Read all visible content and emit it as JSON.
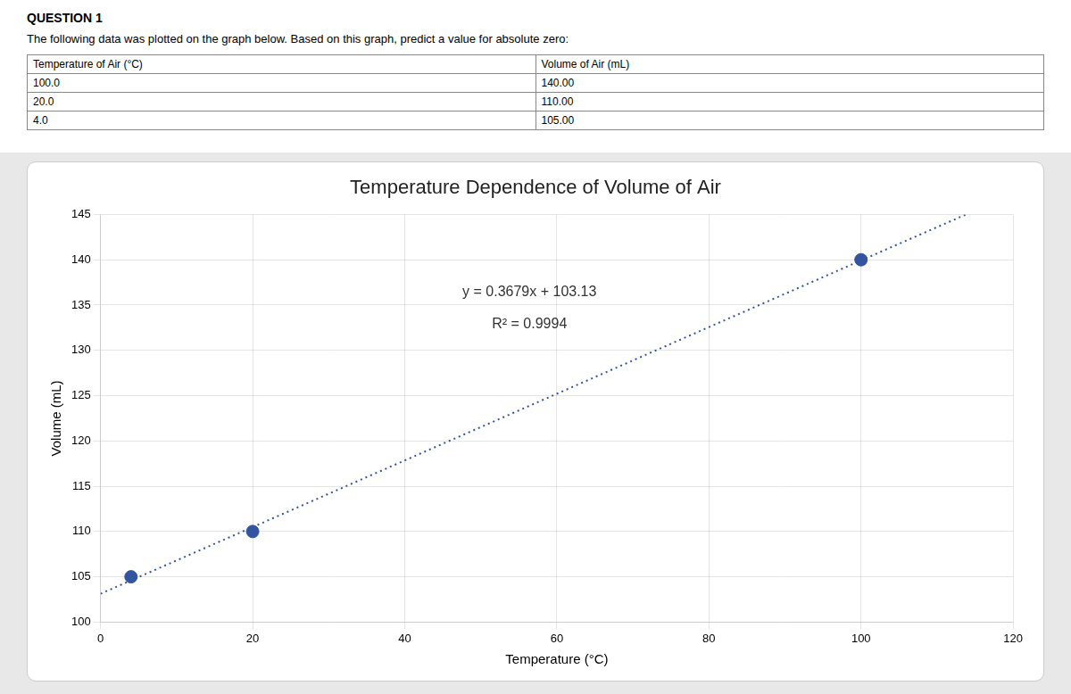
{
  "question_title": "QUESTION 1",
  "question_text": "The following data was plotted on the graph below. Based on this graph, predict a value for absolute zero:",
  "table": {
    "headers": [
      "Temperature of Air (°C)",
      "Volume of Air (mL)"
    ],
    "rows": [
      [
        "100.0",
        "140.00"
      ],
      [
        "20.0",
        "110.00"
      ],
      [
        "4.0",
        "105.00"
      ]
    ]
  },
  "chart_data": {
    "type": "scatter",
    "title": "Temperature Dependence of Volume of Air",
    "x_label": "Temperature (°C)",
    "y_label": "Volume (mL)",
    "x": [
      4.0,
      20.0,
      100.0
    ],
    "values": [
      105.0,
      110.0,
      140.0
    ],
    "color": "#3355a0",
    "marker": "circle",
    "trendline": {
      "slope": 0.3679,
      "intercept": 103.13,
      "color": "#3355a0",
      "line_style": "dotted"
    },
    "annotations": [
      "y = 0.3679x + 103.13",
      "R² = 0.9994"
    ],
    "xlim": [
      0,
      120
    ],
    "ylim": [
      100,
      145
    ],
    "xticks": [
      0,
      20,
      40,
      60,
      80,
      100,
      120
    ],
    "yticks": [
      100,
      105,
      110,
      115,
      120,
      125,
      130,
      135,
      140,
      145
    ],
    "grid": true
  }
}
